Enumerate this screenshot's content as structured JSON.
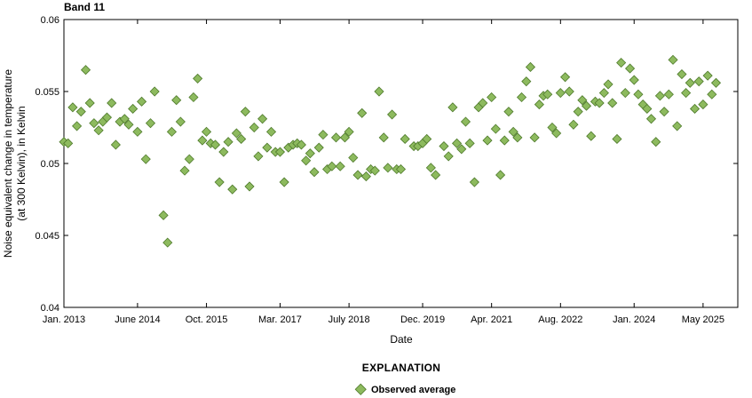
{
  "chart_data": {
    "type": "scatter",
    "title": "Band 11",
    "xlabel": "Date",
    "ylabel_line1": "Noise equivalent change in temperature",
    "ylabel_line2": "(at 300 Kelvin), in Kelvin",
    "xlim": [
      2013.0,
      2026.0
    ],
    "ylim": [
      0.04,
      0.06
    ],
    "yticks": [
      0.04,
      0.045,
      0.05,
      0.055,
      0.06
    ],
    "ytick_labels": [
      "0.04",
      "0.045",
      "0.05",
      "0.055",
      "0.06"
    ],
    "xticks": [
      2013.0,
      2014.42,
      2015.75,
      2017.17,
      2018.5,
      2019.92,
      2021.25,
      2022.58,
      2024.0,
      2025.33
    ],
    "xtick_labels": [
      "Jan. 2013",
      "June 2014",
      "Oct. 2015",
      "Mar. 2017",
      "July 2018",
      "Dec. 2019",
      "Apr. 2021",
      "Aug. 2022",
      "Jan. 2024",
      "May 2025"
    ],
    "grid": false,
    "marker_color": "#8dba5e",
    "marker_edge_color": "#4f7a2c",
    "legend": {
      "title": "EXPLANATION",
      "placement": "bottom-center",
      "entries": [
        "Observed average"
      ]
    },
    "series": [
      {
        "name": "Observed average",
        "points": [
          [
            2013.0,
            0.0515
          ],
          [
            2013.08,
            0.0514
          ],
          [
            2013.17,
            0.0539
          ],
          [
            2013.25,
            0.0526
          ],
          [
            2013.33,
            0.0536
          ],
          [
            2013.42,
            0.0565
          ],
          [
            2013.5,
            0.0542
          ],
          [
            2013.58,
            0.0528
          ],
          [
            2013.67,
            0.0523
          ],
          [
            2013.75,
            0.0529
          ],
          [
            2013.83,
            0.0532
          ],
          [
            2013.92,
            0.0542
          ],
          [
            2014.0,
            0.0513
          ],
          [
            2014.08,
            0.0529
          ],
          [
            2014.17,
            0.0531
          ],
          [
            2014.25,
            0.0527
          ],
          [
            2014.33,
            0.0538
          ],
          [
            2014.42,
            0.0522
          ],
          [
            2014.5,
            0.0543
          ],
          [
            2014.58,
            0.0503
          ],
          [
            2014.67,
            0.0528
          ],
          [
            2014.75,
            0.055
          ],
          [
            2014.92,
            0.0464
          ],
          [
            2015.0,
            0.0445
          ],
          [
            2015.08,
            0.0522
          ],
          [
            2015.17,
            0.0544
          ],
          [
            2015.25,
            0.0529
          ],
          [
            2015.33,
            0.0495
          ],
          [
            2015.42,
            0.0503
          ],
          [
            2015.5,
            0.0546
          ],
          [
            2015.58,
            0.0559
          ],
          [
            2015.67,
            0.0516
          ],
          [
            2015.75,
            0.0522
          ],
          [
            2015.83,
            0.0514
          ],
          [
            2015.92,
            0.0513
          ],
          [
            2016.0,
            0.0487
          ],
          [
            2016.08,
            0.0508
          ],
          [
            2016.17,
            0.0515
          ],
          [
            2016.25,
            0.0482
          ],
          [
            2016.33,
            0.0521
          ],
          [
            2016.42,
            0.0517
          ],
          [
            2016.5,
            0.0536
          ],
          [
            2016.58,
            0.0484
          ],
          [
            2016.67,
            0.0525
          ],
          [
            2016.75,
            0.0505
          ],
          [
            2016.83,
            0.0531
          ],
          [
            2016.92,
            0.0511
          ],
          [
            2017.0,
            0.0522
          ],
          [
            2017.08,
            0.0508
          ],
          [
            2017.17,
            0.0508
          ],
          [
            2017.25,
            0.0487
          ],
          [
            2017.33,
            0.0511
          ],
          [
            2017.42,
            0.0513
          ],
          [
            2017.5,
            0.0514
          ],
          [
            2017.58,
            0.0513
          ],
          [
            2017.67,
            0.0502
          ],
          [
            2017.75,
            0.0507
          ],
          [
            2017.83,
            0.0494
          ],
          [
            2017.92,
            0.0511
          ],
          [
            2018.0,
            0.052
          ],
          [
            2018.08,
            0.0496
          ],
          [
            2018.17,
            0.0498
          ],
          [
            2018.25,
            0.0518
          ],
          [
            2018.33,
            0.0498
          ],
          [
            2018.42,
            0.0518
          ],
          [
            2018.5,
            0.0522
          ],
          [
            2018.58,
            0.0504
          ],
          [
            2018.67,
            0.0492
          ],
          [
            2018.75,
            0.0535
          ],
          [
            2018.83,
            0.0491
          ],
          [
            2018.92,
            0.0496
          ],
          [
            2019.0,
            0.0495
          ],
          [
            2019.08,
            0.055
          ],
          [
            2019.17,
            0.0518
          ],
          [
            2019.25,
            0.0497
          ],
          [
            2019.33,
            0.0534
          ],
          [
            2019.42,
            0.0496
          ],
          [
            2019.5,
            0.0496
          ],
          [
            2019.58,
            0.0517
          ],
          [
            2019.75,
            0.0512
          ],
          [
            2019.83,
            0.0512
          ],
          [
            2019.92,
            0.0514
          ],
          [
            2020.0,
            0.0517
          ],
          [
            2020.08,
            0.0497
          ],
          [
            2020.17,
            0.0492
          ],
          [
            2020.33,
            0.0512
          ],
          [
            2020.42,
            0.0505
          ],
          [
            2020.5,
            0.0539
          ],
          [
            2020.58,
            0.0514
          ],
          [
            2020.67,
            0.051
          ],
          [
            2020.75,
            0.0529
          ],
          [
            2020.83,
            0.0514
          ],
          [
            2020.92,
            0.0487
          ],
          [
            2021.0,
            0.0539
          ],
          [
            2021.08,
            0.0542
          ],
          [
            2021.17,
            0.0516
          ],
          [
            2021.25,
            0.0546
          ],
          [
            2021.33,
            0.0524
          ],
          [
            2021.42,
            0.0492
          ],
          [
            2021.5,
            0.0516
          ],
          [
            2021.58,
            0.0536
          ],
          [
            2021.67,
            0.0522
          ],
          [
            2021.75,
            0.0518
          ],
          [
            2021.83,
            0.0546
          ],
          [
            2021.92,
            0.0557
          ],
          [
            2022.0,
            0.0567
          ],
          [
            2022.08,
            0.0518
          ],
          [
            2022.17,
            0.0541
          ],
          [
            2022.25,
            0.0547
          ],
          [
            2022.33,
            0.0548
          ],
          [
            2022.42,
            0.0525
          ],
          [
            2022.5,
            0.0521
          ],
          [
            2022.58,
            0.0549
          ],
          [
            2022.67,
            0.056
          ],
          [
            2022.75,
            0.055
          ],
          [
            2022.83,
            0.0527
          ],
          [
            2022.92,
            0.0536
          ],
          [
            2023.0,
            0.0544
          ],
          [
            2023.08,
            0.054
          ],
          [
            2023.17,
            0.0519
          ],
          [
            2023.25,
            0.0543
          ],
          [
            2023.33,
            0.0542
          ],
          [
            2023.42,
            0.0549
          ],
          [
            2023.5,
            0.0555
          ],
          [
            2023.58,
            0.0542
          ],
          [
            2023.67,
            0.0517
          ],
          [
            2023.75,
            0.057
          ],
          [
            2023.83,
            0.0549
          ],
          [
            2023.92,
            0.0566
          ],
          [
            2024.0,
            0.0558
          ],
          [
            2024.08,
            0.0548
          ],
          [
            2024.17,
            0.0541
          ],
          [
            2024.25,
            0.0538
          ],
          [
            2024.33,
            0.0531
          ],
          [
            2024.42,
            0.0515
          ],
          [
            2024.5,
            0.0547
          ],
          [
            2024.58,
            0.0536
          ],
          [
            2024.67,
            0.0548
          ],
          [
            2024.75,
            0.0572
          ],
          [
            2024.83,
            0.0526
          ],
          [
            2024.92,
            0.0562
          ],
          [
            2025.0,
            0.0549
          ],
          [
            2025.08,
            0.0556
          ],
          [
            2025.17,
            0.0538
          ],
          [
            2025.25,
            0.0557
          ],
          [
            2025.33,
            0.0541
          ],
          [
            2025.42,
            0.0561
          ],
          [
            2025.5,
            0.0548
          ],
          [
            2025.58,
            0.0556
          ]
        ]
      }
    ]
  }
}
